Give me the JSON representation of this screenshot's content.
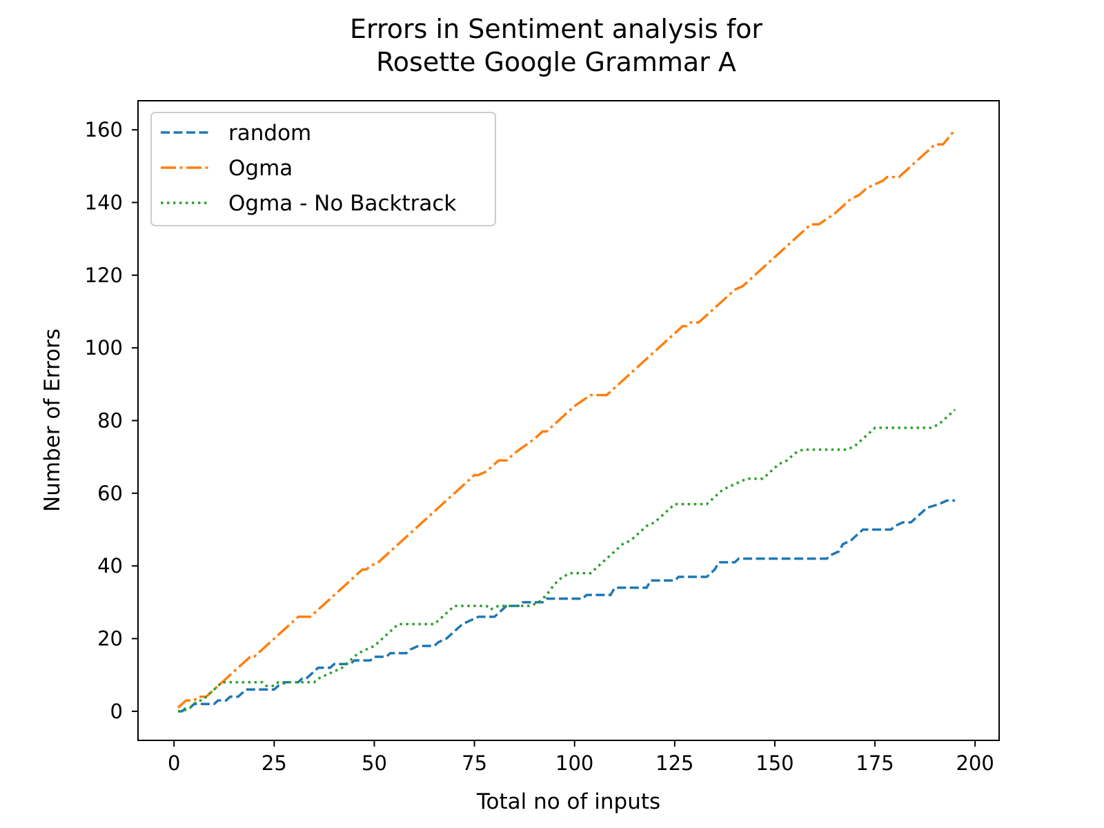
{
  "chart_data": {
    "type": "line",
    "title": [
      "Errors in Sentiment analysis for",
      "Rosette Google Grammar A"
    ],
    "xlabel": "Total no of inputs",
    "ylabel": "Number of Errors",
    "xlim": [
      -9,
      206
    ],
    "ylim": [
      -8,
      168
    ],
    "xticks": [
      0,
      25,
      50,
      75,
      100,
      125,
      150,
      175,
      200
    ],
    "yticks": [
      0,
      20,
      40,
      60,
      80,
      100,
      120,
      140,
      160
    ],
    "grid": false,
    "legend_position": "top-left",
    "series": [
      {
        "name": "random",
        "color": "#1f77b4",
        "dash": "dashed",
        "points": [
          [
            1,
            0
          ],
          [
            2,
            0
          ],
          [
            3,
            1
          ],
          [
            4,
            1
          ],
          [
            5,
            2
          ],
          [
            10,
            2
          ],
          [
            11,
            3
          ],
          [
            13,
            3
          ],
          [
            14,
            4
          ],
          [
            16,
            4
          ],
          [
            17,
            5
          ],
          [
            18,
            6
          ],
          [
            25,
            6
          ],
          [
            26,
            7
          ],
          [
            28,
            8
          ],
          [
            31,
            8
          ],
          [
            32,
            9
          ],
          [
            33,
            9
          ],
          [
            35,
            11
          ],
          [
            36,
            12
          ],
          [
            39,
            12
          ],
          [
            40,
            13
          ],
          [
            44,
            13
          ],
          [
            45,
            14
          ],
          [
            49,
            14
          ],
          [
            50,
            15
          ],
          [
            53,
            15
          ],
          [
            54,
            16
          ],
          [
            58,
            16
          ],
          [
            59,
            17
          ],
          [
            61,
            18
          ],
          [
            65,
            18
          ],
          [
            66,
            19
          ],
          [
            68,
            20
          ],
          [
            70,
            22
          ],
          [
            72,
            24
          ],
          [
            74,
            25
          ],
          [
            76,
            26
          ],
          [
            80,
            26
          ],
          [
            81,
            27
          ],
          [
            82,
            28
          ],
          [
            83,
            29
          ],
          [
            86,
            29
          ],
          [
            87,
            30
          ],
          [
            92,
            30
          ],
          [
            93,
            31
          ],
          [
            102,
            31
          ],
          [
            103,
            32
          ],
          [
            109,
            32
          ],
          [
            110,
            34
          ],
          [
            118,
            34
          ],
          [
            119,
            36
          ],
          [
            125,
            36
          ],
          [
            126,
            37
          ],
          [
            133,
            37
          ],
          [
            135,
            39
          ],
          [
            136,
            41
          ],
          [
            140,
            41
          ],
          [
            141,
            42
          ],
          [
            163,
            42
          ],
          [
            164,
            43
          ],
          [
            166,
            44
          ],
          [
            167,
            46
          ],
          [
            169,
            47
          ],
          [
            170,
            48
          ],
          [
            172,
            50
          ],
          [
            179,
            50
          ],
          [
            180,
            51
          ],
          [
            182,
            52
          ],
          [
            184,
            52
          ],
          [
            186,
            54
          ],
          [
            188,
            56
          ],
          [
            191,
            57
          ],
          [
            193,
            58
          ],
          [
            195,
            58
          ]
        ]
      },
      {
        "name": "Ogma",
        "color": "#ff7f0e",
        "dash": "dashdot",
        "points": [
          [
            1,
            1
          ],
          [
            2,
            2
          ],
          [
            3,
            3
          ],
          [
            5,
            3
          ],
          [
            6,
            4
          ],
          [
            8,
            4
          ],
          [
            9,
            5
          ],
          [
            11,
            7
          ],
          [
            13,
            9
          ],
          [
            15,
            11
          ],
          [
            17,
            13
          ],
          [
            19,
            15
          ],
          [
            20,
            15
          ],
          [
            25,
            20
          ],
          [
            30,
            25
          ],
          [
            31,
            26
          ],
          [
            34,
            26
          ],
          [
            35,
            27
          ],
          [
            45,
            37
          ],
          [
            47,
            39
          ],
          [
            48,
            39
          ],
          [
            49,
            40
          ],
          [
            51,
            41
          ],
          [
            60,
            50
          ],
          [
            65,
            55
          ],
          [
            74,
            64
          ],
          [
            75,
            65
          ],
          [
            76,
            65
          ],
          [
            78,
            66
          ],
          [
            80,
            68
          ],
          [
            81,
            69
          ],
          [
            83,
            69
          ],
          [
            85,
            71
          ],
          [
            90,
            75
          ],
          [
            92,
            77
          ],
          [
            93,
            77
          ],
          [
            100,
            84
          ],
          [
            104,
            87
          ],
          [
            108,
            87
          ],
          [
            110,
            89
          ],
          [
            120,
            99
          ],
          [
            125,
            104
          ],
          [
            127,
            106
          ],
          [
            128,
            106
          ],
          [
            129,
            107
          ],
          [
            131,
            107
          ],
          [
            135,
            111
          ],
          [
            140,
            116
          ],
          [
            142,
            117
          ],
          [
            150,
            125
          ],
          [
            157,
            132
          ],
          [
            159,
            134
          ],
          [
            161,
            134
          ],
          [
            165,
            137
          ],
          [
            169,
            141
          ],
          [
            171,
            142
          ],
          [
            173,
            144
          ],
          [
            175,
            145
          ],
          [
            177,
            146
          ],
          [
            178,
            147
          ],
          [
            181,
            147
          ],
          [
            185,
            151
          ],
          [
            189,
            155
          ],
          [
            190,
            156
          ],
          [
            192,
            156
          ],
          [
            195,
            160
          ]
        ]
      },
      {
        "name": "Ogma - No Backtrack",
        "color": "#2ca02c",
        "dash": "dotted",
        "points": [
          [
            1,
            0
          ],
          [
            2,
            0
          ],
          [
            4,
            1
          ],
          [
            5,
            2
          ],
          [
            6,
            3
          ],
          [
            7,
            3
          ],
          [
            8,
            4
          ],
          [
            9,
            5
          ],
          [
            10,
            6
          ],
          [
            11,
            7
          ],
          [
            12,
            8
          ],
          [
            22,
            8
          ],
          [
            23,
            7
          ],
          [
            25,
            7
          ],
          [
            26,
            8
          ],
          [
            35,
            8
          ],
          [
            36,
            9
          ],
          [
            38,
            10
          ],
          [
            40,
            11
          ],
          [
            42,
            12
          ],
          [
            44,
            14
          ],
          [
            46,
            16
          ],
          [
            48,
            17
          ],
          [
            50,
            18
          ],
          [
            52,
            20
          ],
          [
            54,
            22
          ],
          [
            56,
            24
          ],
          [
            65,
            24
          ],
          [
            67,
            26
          ],
          [
            69,
            28
          ],
          [
            70,
            29
          ],
          [
            78,
            29
          ],
          [
            79,
            28
          ],
          [
            81,
            29
          ],
          [
            89,
            29
          ],
          [
            91,
            30
          ],
          [
            93,
            32
          ],
          [
            95,
            35
          ],
          [
            97,
            37
          ],
          [
            99,
            38
          ],
          [
            104,
            38
          ],
          [
            106,
            40
          ],
          [
            108,
            42
          ],
          [
            110,
            44
          ],
          [
            112,
            46
          ],
          [
            114,
            47
          ],
          [
            116,
            49
          ],
          [
            118,
            51
          ],
          [
            120,
            52
          ],
          [
            122,
            54
          ],
          [
            124,
            56
          ],
          [
            125,
            57
          ],
          [
            133,
            57
          ],
          [
            135,
            59
          ],
          [
            137,
            61
          ],
          [
            139,
            62
          ],
          [
            141,
            63
          ],
          [
            143,
            64
          ],
          [
            147,
            64
          ],
          [
            149,
            66
          ],
          [
            151,
            68
          ],
          [
            153,
            69
          ],
          [
            155,
            71
          ],
          [
            157,
            72
          ],
          [
            168,
            72
          ],
          [
            170,
            73
          ],
          [
            172,
            75
          ],
          [
            174,
            77
          ],
          [
            175,
            78
          ],
          [
            189,
            78
          ],
          [
            191,
            79
          ],
          [
            193,
            81
          ],
          [
            195,
            83
          ]
        ]
      }
    ]
  }
}
